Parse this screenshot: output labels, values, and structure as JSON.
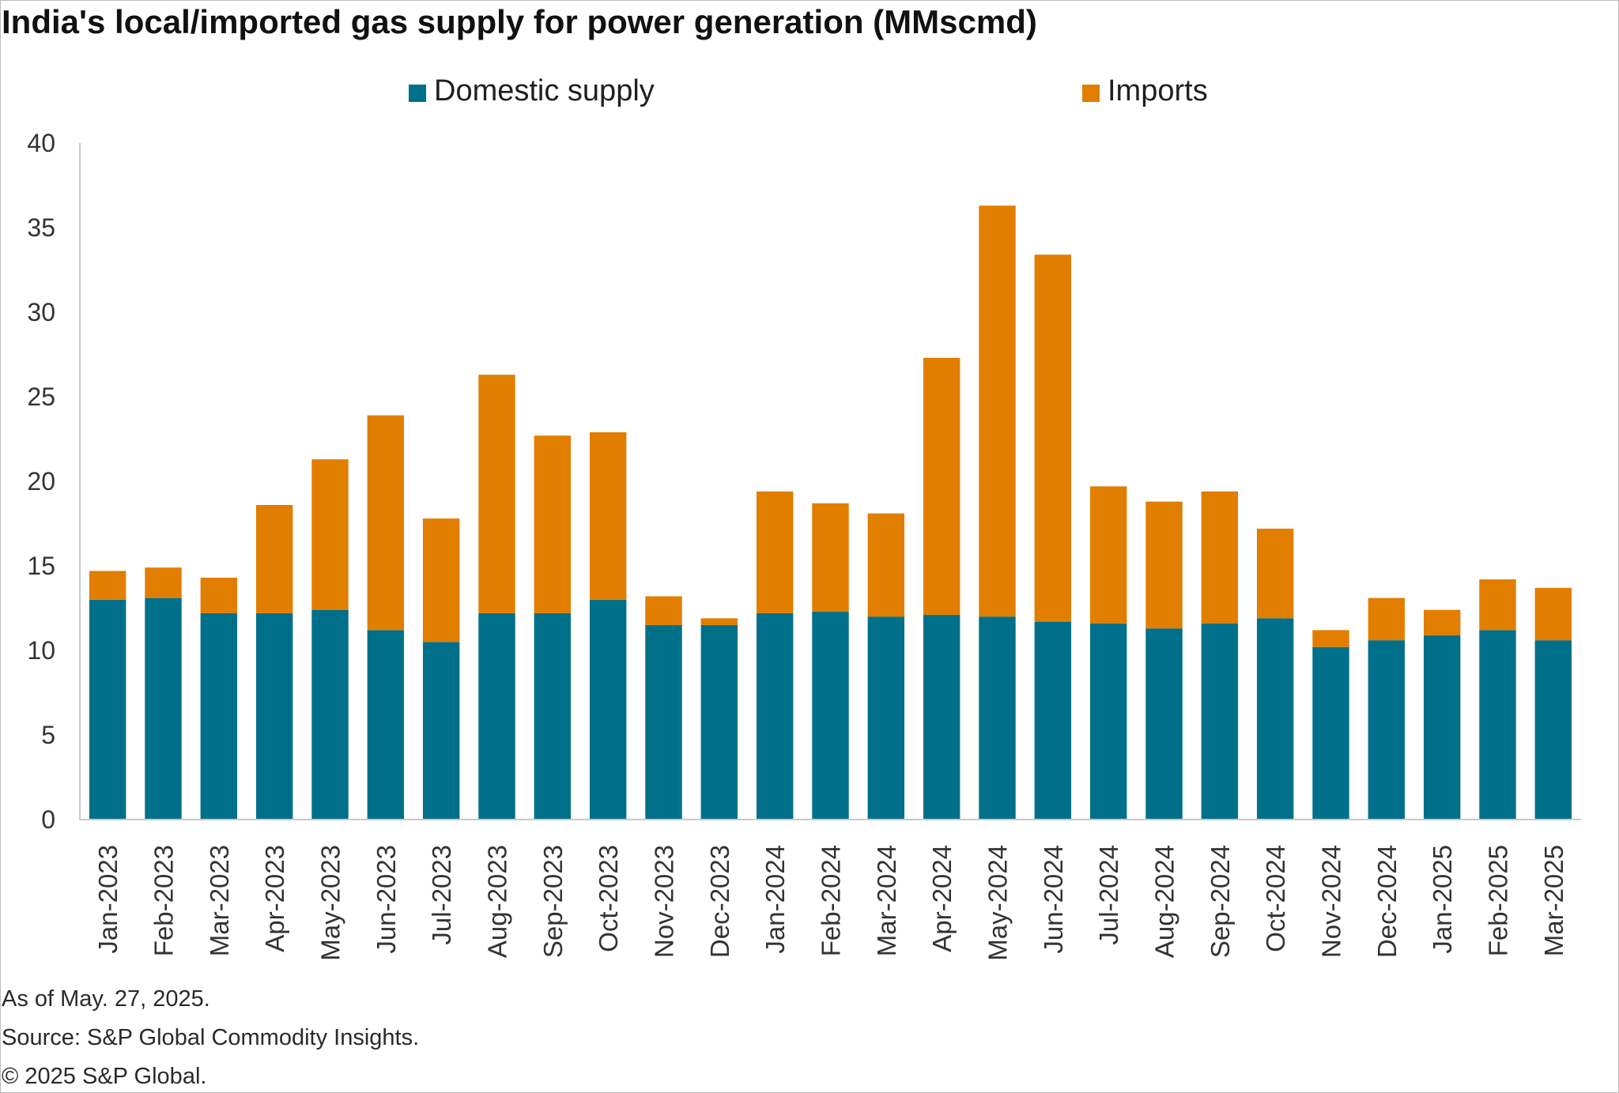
{
  "chart_data": {
    "type": "bar",
    "stacked": true,
    "title": "India's local/imported gas supply for power generation (MMscmd)",
    "categories": [
      "Jan-2023",
      "Feb-2023",
      "Mar-2023",
      "Apr-2023",
      "May-2023",
      "Jun-2023",
      "Jul-2023",
      "Aug-2023",
      "Sep-2023",
      "Oct-2023",
      "Nov-2023",
      "Dec-2023",
      "Jan-2024",
      "Feb-2024",
      "Mar-2024",
      "Apr-2024",
      "May-2024",
      "Jun-2024",
      "Jul-2024",
      "Aug-2024",
      "Sep-2024",
      "Oct-2024",
      "Nov-2024",
      "Dec-2024",
      "Jan-2025",
      "Feb-2025",
      "Mar-2025"
    ],
    "series": [
      {
        "name": "Domestic supply",
        "color": "#00708a",
        "values": [
          13.0,
          13.1,
          12.2,
          12.2,
          12.4,
          11.2,
          10.5,
          12.2,
          12.2,
          13.0,
          11.5,
          11.5,
          12.2,
          12.3,
          12.0,
          12.1,
          12.0,
          11.7,
          11.6,
          11.3,
          11.6,
          11.9,
          10.2,
          10.6,
          10.9,
          11.2,
          10.6
        ]
      },
      {
        "name": "Imports",
        "color": "#e17e00",
        "values": [
          1.7,
          1.8,
          2.1,
          6.4,
          8.9,
          12.7,
          7.3,
          14.1,
          10.5,
          9.9,
          1.7,
          0.4,
          7.2,
          6.4,
          6.1,
          15.2,
          24.3,
          21.7,
          8.1,
          7.5,
          7.8,
          5.3,
          1.0,
          2.5,
          1.5,
          3.0,
          3.1
        ]
      }
    ],
    "xlabel": "",
    "ylabel": "",
    "ylim": [
      0,
      40
    ],
    "yticks": [
      "0",
      "5",
      "10",
      "15",
      "20",
      "25",
      "30",
      "35",
      "40"
    ],
    "grid": false,
    "legend_position": "top"
  },
  "footer": {
    "as_of": "As of May. 27, 2025.",
    "source": "Source: S&P Global Commodity Insights.",
    "copyright": "© 2025 S&P Global."
  }
}
